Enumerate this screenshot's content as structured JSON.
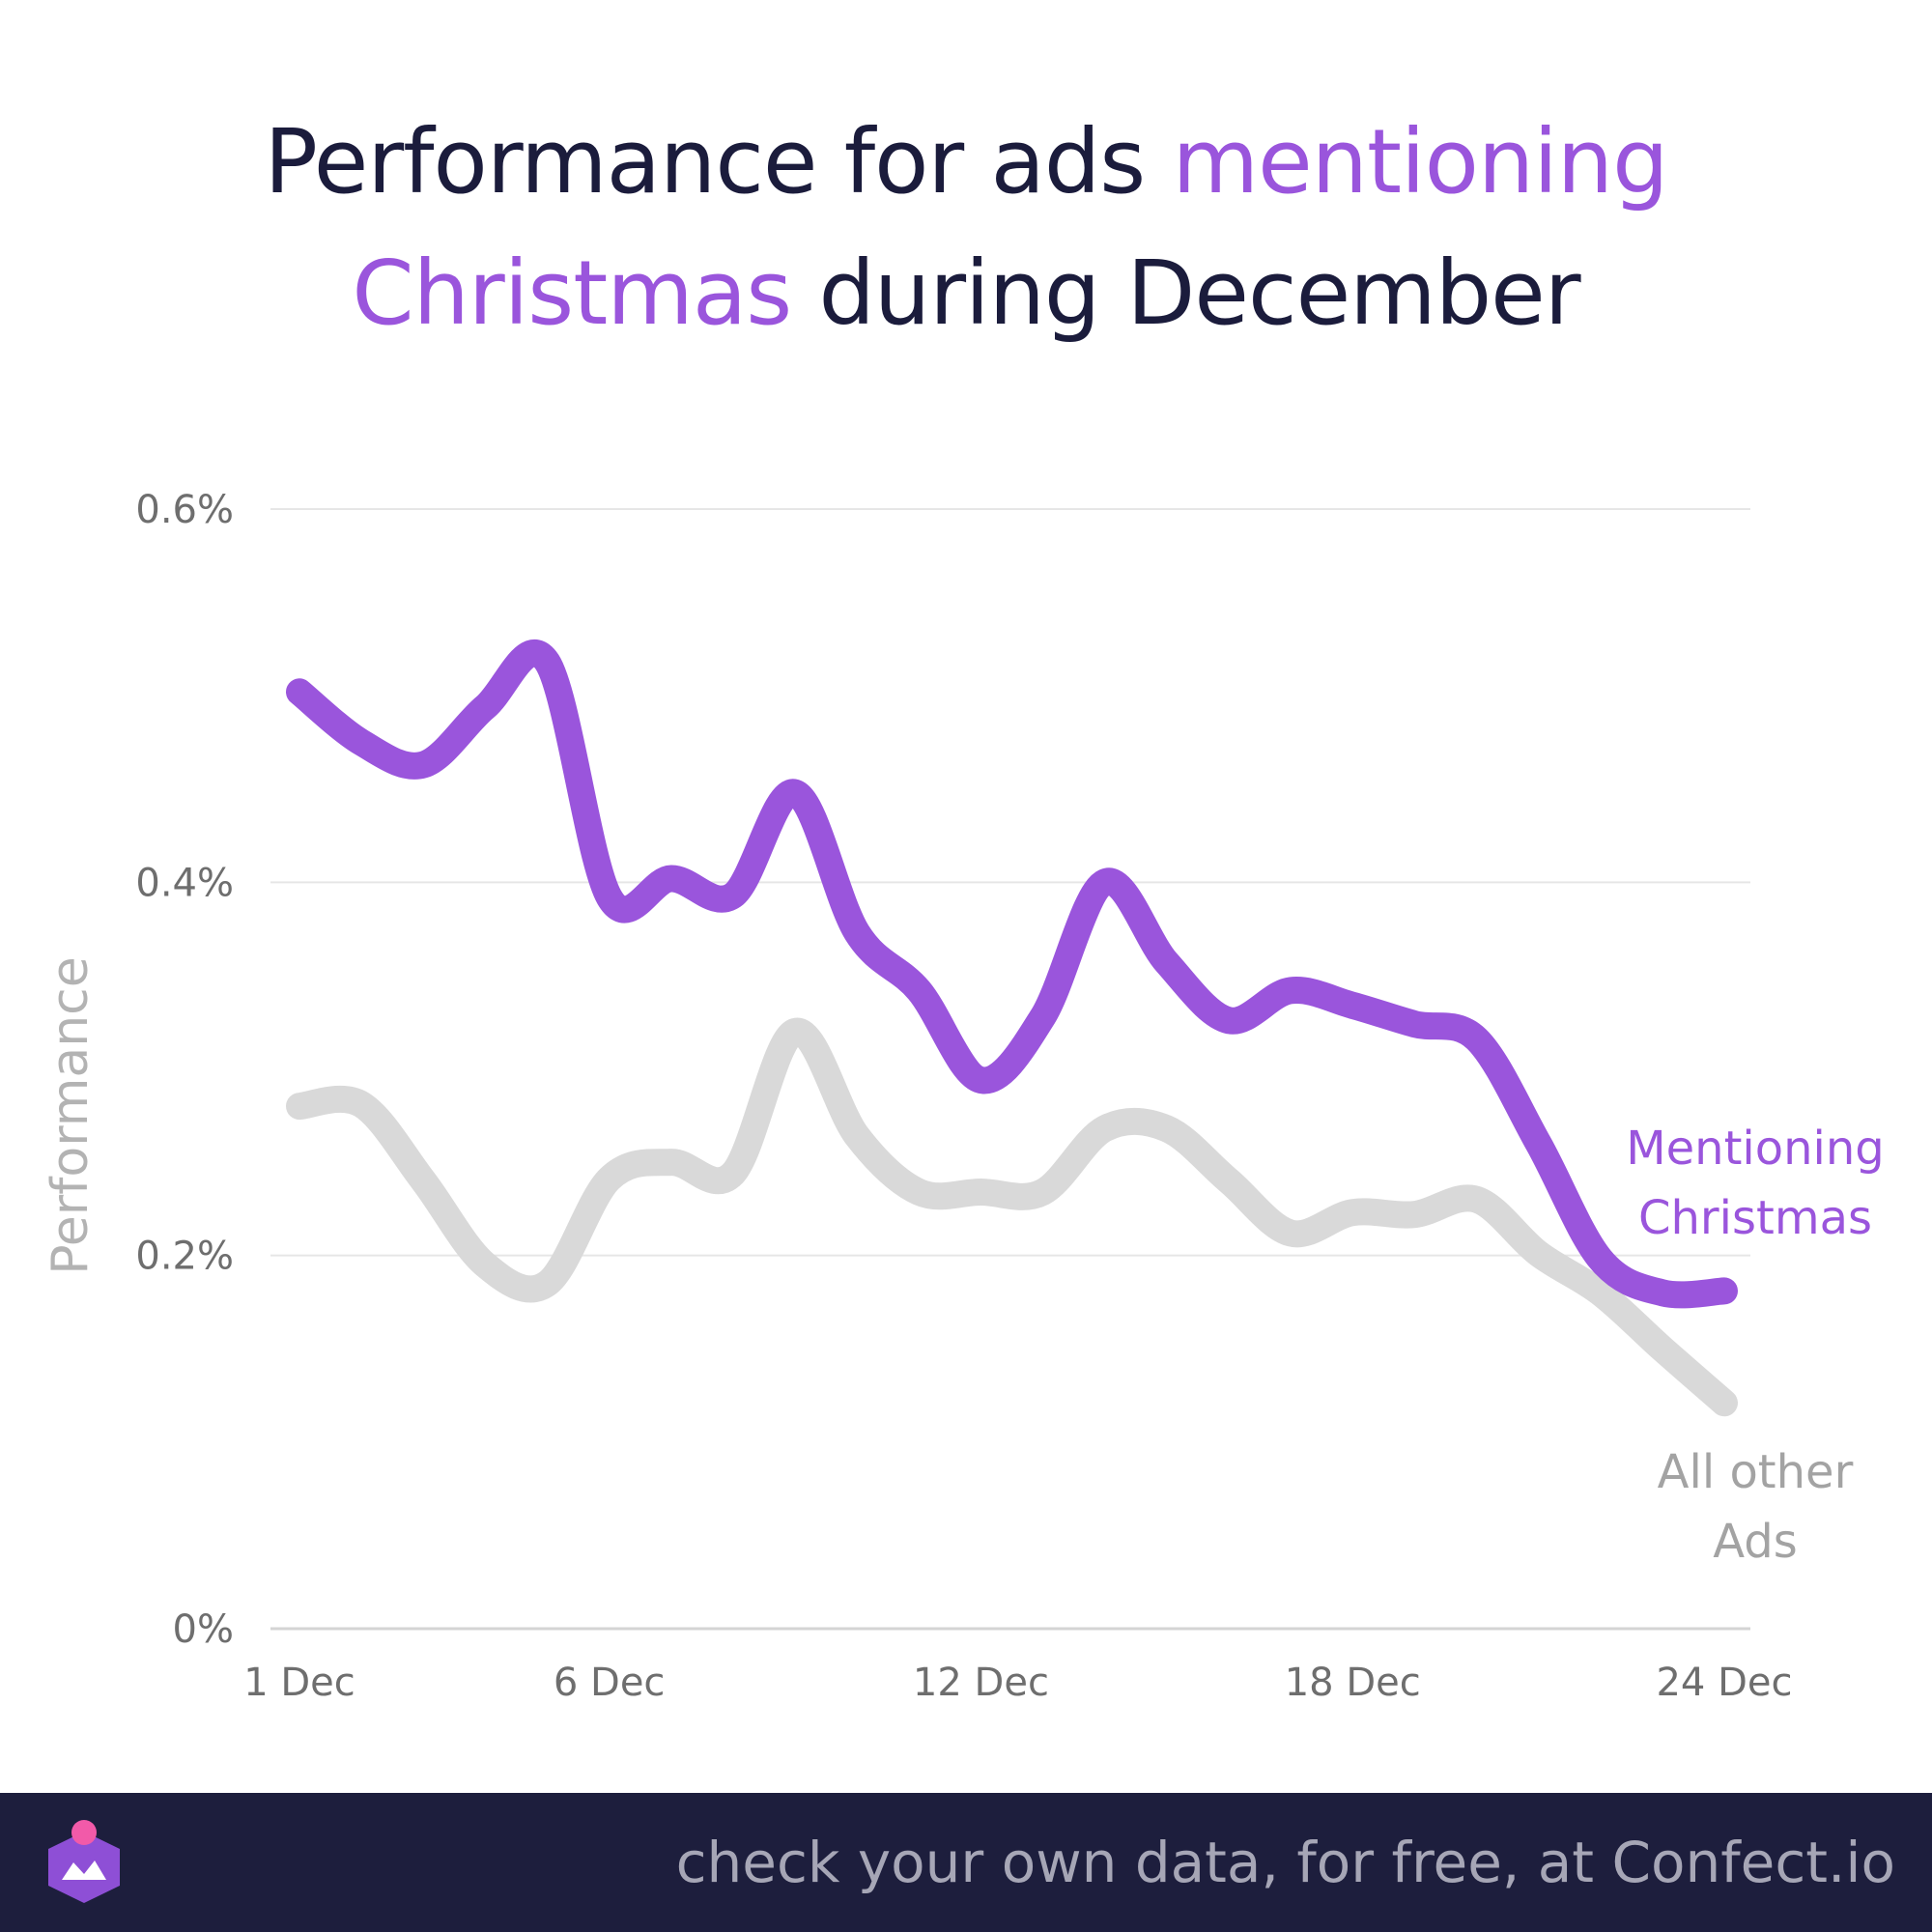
{
  "title": {
    "part1": "Performance for ads ",
    "highlight1": "mentioning",
    "highlight2": "Christmas",
    "part2": " during December"
  },
  "colors": {
    "title_dark": "#1b1c3c",
    "accent_purple": "#9a55dc",
    "other_gray": "#d9d9d9",
    "other_label_gray": "#a3a3a3",
    "footer_bg": "#1d1e3d",
    "footer_text": "#a6a6b6"
  },
  "chart_data": {
    "type": "line",
    "ylabel": "Performance",
    "xlabel": "",
    "x": [
      "1 Dec",
      "2 Dec",
      "3 Dec",
      "4 Dec",
      "5 Dec",
      "6 Dec",
      "7 Dec",
      "8 Dec",
      "9 Dec",
      "10 Dec",
      "11 Dec",
      "12 Dec",
      "13 Dec",
      "14 Dec",
      "15 Dec",
      "16 Dec",
      "17 Dec",
      "18 Dec",
      "19 Dec",
      "20 Dec",
      "21 Dec",
      "22 Dec",
      "23 Dec",
      "24 Dec"
    ],
    "x_ticks": [
      "1 Dec",
      "6 Dec",
      "12 Dec",
      "18 Dec",
      "24 Dec"
    ],
    "y_ticks": [
      "0%",
      "0.2%",
      "0.4%",
      "0.6%"
    ],
    "ylim": [
      0,
      0.6
    ],
    "grid": true,
    "series": [
      {
        "name": "Mentioning Christmas",
        "label_lines": [
          "Mentioning",
          "Christmas"
        ],
        "color": "#9a55dc",
        "values": [
          0.502,
          0.475,
          0.463,
          0.494,
          0.518,
          0.392,
          0.402,
          0.393,
          0.448,
          0.373,
          0.342,
          0.294,
          0.328,
          0.4,
          0.357,
          0.326,
          0.342,
          0.334,
          0.324,
          0.316,
          0.26,
          0.198,
          0.18,
          0.181
        ]
      },
      {
        "name": "All other Ads",
        "label_lines": [
          "All other",
          "Ads"
        ],
        "color": "#d9d9d9",
        "values": [
          0.28,
          0.281,
          0.24,
          0.195,
          0.185,
          0.241,
          0.25,
          0.244,
          0.32,
          0.264,
          0.234,
          0.234,
          0.234,
          0.268,
          0.268,
          0.24,
          0.212,
          0.223,
          0.222,
          0.23,
          0.201,
          0.18,
          0.15,
          0.121
        ]
      }
    ]
  },
  "footer": {
    "text": "check your own data, for free, at Confect.io",
    "logo_icon": "confect-logo-icon"
  }
}
